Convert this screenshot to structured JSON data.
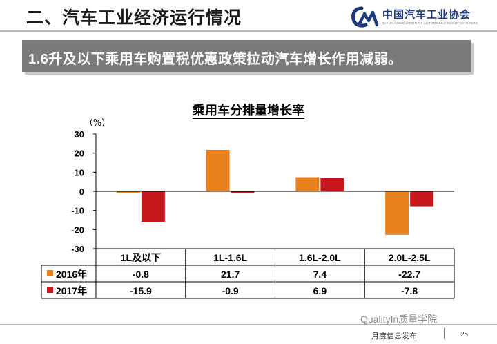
{
  "header": {
    "title": "二、汽车工业经济运行情况",
    "logo_name": "中国汽车工业协会",
    "logo_sub": "CHINA ASSOCIATION OF AUTOMOBILE MANUFACTURERS"
  },
  "banner": {
    "text": "1.6升及以下乘用车购置税优惠政策拉动汽车增长作用减弱。"
  },
  "chart_data": {
    "type": "bar",
    "title": "乘用车分排量增长率",
    "unit_label": "（%）",
    "categories": [
      "1L及以下",
      "1L-1.6L",
      "1.6L-2.0L",
      "2.0L-2.5L"
    ],
    "series": [
      {
        "name": "2016年",
        "color": "#E8801D",
        "values": [
          -0.8,
          21.7,
          7.4,
          -22.7
        ],
        "labels": [
          "-0.8",
          "21.7",
          "7.4",
          "-22.7"
        ]
      },
      {
        "name": "2017年",
        "color": "#C8161D",
        "values": [
          -15.9,
          -0.9,
          6.9,
          -7.8
        ],
        "labels": [
          "-15.9",
          "-0.9",
          "6.9",
          "-7.8"
        ]
      }
    ],
    "ylim": [
      -30,
      30
    ],
    "yticks": [
      "30",
      "20",
      "10",
      "0",
      "-10",
      "-20",
      "-30"
    ],
    "grid": false,
    "legend": "data-table"
  },
  "footer": {
    "watermark": "QualityIn质量学院",
    "publisher": "月度信息发布",
    "page_number": "25"
  }
}
